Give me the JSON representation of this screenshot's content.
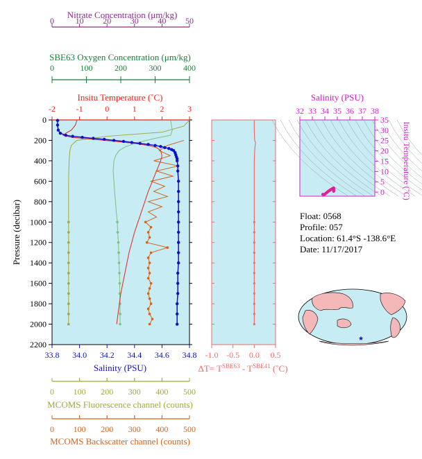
{
  "colors": {
    "nitrate": "#8B2C8B",
    "oxygen": "#1A7F3A",
    "temperature": "#E8231C",
    "salinity": "#1010C8",
    "fluorescence": "#A3A83A",
    "backscatter": "#D0651E",
    "delta_t": "#F06A6A",
    "ts_axis": "#D020C8",
    "panel_bg": "#C8ECF4"
  },
  "info": {
    "float": "Float:  0568",
    "profile": "Profile:  057",
    "location": "Location:  61.4°S  -138.6°E",
    "date": "Date:  11/17/2017"
  },
  "chart_data": [
    {
      "type": "line",
      "panel": "profile",
      "ylabel": "Pressure (decibar)",
      "ylim": [
        2200,
        0
      ],
      "yticks": [
        0,
        200,
        400,
        600,
        800,
        1000,
        1200,
        1400,
        1600,
        1800,
        2000,
        2200
      ],
      "axes": {
        "nitrate": {
          "label": "Nitrate Concentration (μm/kg)",
          "lim": [
            0,
            50
          ],
          "ticks": [
            0,
            10,
            20,
            30,
            40,
            50
          ]
        },
        "oxygen": {
          "label": "SBE63 Oxygen Concentration (μm/kg)",
          "lim": [
            0,
            400
          ],
          "ticks": [
            0,
            100,
            200,
            300,
            400
          ]
        },
        "temperature": {
          "label": "Insitu Temperature (˚C)",
          "lim": [
            -2,
            3
          ],
          "ticks": [
            -2,
            -1,
            0,
            1,
            2,
            3
          ]
        },
        "salinity": {
          "label": "Salinity (PSU)",
          "lim": [
            33.8,
            34.8
          ],
          "ticks": [
            "33.8",
            "34.0",
            "34.2",
            "34.4",
            "34.6",
            "34.8"
          ]
        },
        "fluorescence": {
          "label": "MCOMS Fluorescence channel (counts)",
          "lim": [
            0,
            500
          ],
          "ticks": [
            0,
            100,
            200,
            300,
            400,
            500
          ]
        },
        "backscatter": {
          "label": "MCOMS Backscatter channel (counts)",
          "lim": [
            0,
            500
          ],
          "ticks": [
            0,
            100,
            200,
            300,
            400,
            500
          ]
        }
      },
      "series": {
        "temperature": {
          "p": [
            5,
            50,
            100,
            130,
            150,
            170,
            190,
            210,
            230,
            250,
            270,
            300,
            350,
            400,
            500,
            700,
            900,
            1100,
            1300,
            1500,
            1700,
            1900,
            2000
          ],
          "v": [
            -1.1,
            -1.15,
            -1.3,
            -1.5,
            -1.6,
            -1.3,
            -0.5,
            0.3,
            1.0,
            1.5,
            1.8,
            1.95,
            2.0,
            1.95,
            1.8,
            1.5,
            1.25,
            1.0,
            0.8,
            0.65,
            0.5,
            0.4,
            0.35
          ]
        },
        "salinity": {
          "p": [
            5,
            50,
            100,
            130,
            150,
            160,
            170,
            180,
            190,
            200,
            210,
            220,
            230,
            240,
            250,
            260,
            270,
            280,
            290,
            300,
            320,
            340,
            360,
            380,
            400,
            450,
            500,
            600,
            700,
            800,
            900,
            1000,
            1100,
            1200,
            1300,
            1400,
            1500,
            1600,
            1700,
            1800,
            1900,
            2000
          ],
          "v": [
            33.84,
            33.84,
            33.845,
            33.86,
            33.9,
            33.95,
            34.02,
            34.1,
            34.18,
            34.25,
            34.32,
            34.38,
            34.44,
            34.5,
            34.55,
            34.59,
            34.62,
            34.65,
            34.67,
            34.685,
            34.695,
            34.7,
            34.705,
            34.71,
            34.71,
            34.715,
            34.715,
            34.72,
            34.72,
            34.72,
            34.72,
            34.72,
            34.72,
            34.72,
            34.72,
            34.72,
            34.715,
            34.715,
            34.715,
            34.71,
            34.71,
            34.71
          ]
        },
        "oxygen": {
          "p": [
            5,
            100,
            150,
            180,
            220,
            260,
            300,
            350,
            400,
            500,
            700,
            900,
            1000,
            1100,
            1200,
            1300,
            1400,
            1500,
            1600,
            1700,
            1800,
            1900,
            2000
          ],
          "v": [
            345,
            350,
            345,
            300,
            250,
            215,
            195,
            185,
            180,
            178,
            182,
            187,
            190,
            191,
            193,
            194,
            195,
            196,
            197,
            197,
            198,
            198,
            198
          ]
        },
        "fluorescence": {
          "p": [
            0,
            60,
            120,
            160,
            200,
            250,
            300,
            400,
            600,
            800,
            1000,
            1100,
            1200,
            1300,
            1400,
            1500,
            1600,
            1700,
            1800,
            1900,
            2000
          ],
          "v": [
            500,
            480,
            400,
            200,
            90,
            70,
            65,
            62,
            60,
            60,
            60,
            60,
            60,
            60,
            60,
            60,
            60,
            60,
            60,
            60,
            60
          ]
        },
        "backscatter": {
          "p": [
            200,
            250,
            300,
            350,
            400,
            450,
            500,
            550,
            600,
            650,
            700,
            750,
            800,
            850,
            900,
            950,
            1000,
            1050,
            1100,
            1150,
            1200,
            1250,
            1300,
            1350,
            1400,
            1450,
            1500,
            1550,
            1600,
            1650,
            1700,
            1750,
            1800,
            1850,
            1900,
            1950,
            2000
          ],
          "v": [
            480,
            420,
            390,
            430,
            370,
            460,
            380,
            440,
            360,
            410,
            370,
            420,
            350,
            400,
            350,
            380,
            340,
            360,
            350,
            355,
            345,
            420,
            360,
            350,
            355,
            350,
            355,
            350,
            360,
            355,
            350,
            355,
            360,
            350,
            355,
            365,
            355
          ]
        }
      }
    },
    {
      "type": "line",
      "panel": "delta_t",
      "xlabel": "ΔT= T",
      "xlabel_sup1": "SBE63",
      "xlabel_mid": " - T",
      "xlabel_sup2": "SBE41",
      "xlabel_unit": " (˚C)",
      "xlim": [
        -1.0,
        0.5
      ],
      "xticks": [
        "-1.0",
        "-0.5",
        "0.0",
        "0.5"
      ],
      "series": {
        "p": [
          5,
          100,
          200,
          220,
          250,
          300,
          400,
          600,
          800,
          1000,
          1100,
          1200,
          1300,
          1400,
          1500,
          1600,
          1700,
          1800,
          1900,
          2000
        ],
        "v": [
          0.0,
          0.0,
          0.01,
          0.03,
          0.02,
          0.01,
          0.0,
          0.0,
          0.0,
          0.0,
          0.0,
          0.0,
          0.0,
          0.0,
          0.0,
          0.0,
          0.0,
          0.0,
          0.0,
          0.0
        ]
      }
    },
    {
      "type": "scatter",
      "panel": "ts_diagram",
      "xlabel": "Salinity (PSU)",
      "ylabel": "Insitu Temperature (˚C)",
      "xlim": [
        32,
        38
      ],
      "ylim": [
        -2,
        35
      ],
      "xticks": [
        32,
        33,
        34,
        35,
        36,
        37,
        38
      ],
      "yticks": [
        0,
        5,
        10,
        15,
        20,
        25,
        30,
        35
      ],
      "series": {
        "s": [
          33.84,
          33.9,
          34.0,
          34.1,
          34.2,
          34.3,
          34.4,
          34.5,
          34.6,
          34.7,
          34.72,
          34.72,
          34.71
        ],
        "t": [
          -1.1,
          -1.2,
          -1.0,
          -0.5,
          0.0,
          0.5,
          0.9,
          1.3,
          1.7,
          1.95,
          1.8,
          1.0,
          0.4
        ]
      }
    }
  ]
}
